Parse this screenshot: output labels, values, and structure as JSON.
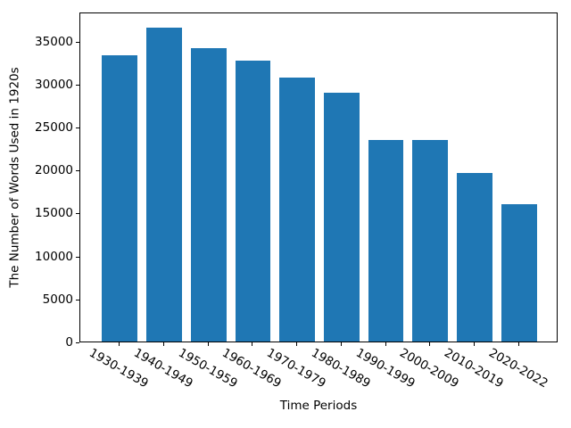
{
  "chart_data": {
    "type": "bar",
    "title": "",
    "xlabel": "Time Periods",
    "ylabel": "The Number of Words Used in 1920s",
    "categories": [
      "1930-1939",
      "1940-1949",
      "1950-1959",
      "1960-1969",
      "1970-1979",
      "1980-1989",
      "1990-1999",
      "2000-2009",
      "2010-2019",
      "2020-2022"
    ],
    "values": [
      33300,
      36500,
      34100,
      32700,
      30700,
      29000,
      23450,
      23450,
      19600,
      16000
    ],
    "yticks": [
      0,
      5000,
      10000,
      15000,
      20000,
      25000,
      30000,
      35000
    ],
    "ylim": [
      0,
      38400
    ],
    "xlim": [
      -0.89,
      9.89
    ],
    "bar_width_fraction": 0.8,
    "bar_color": "#1f77b4",
    "axis_color": "#000000",
    "background_color": "#ffffff",
    "x_tick_rotation_deg": 30,
    "grid": false,
    "legend": "none"
  }
}
